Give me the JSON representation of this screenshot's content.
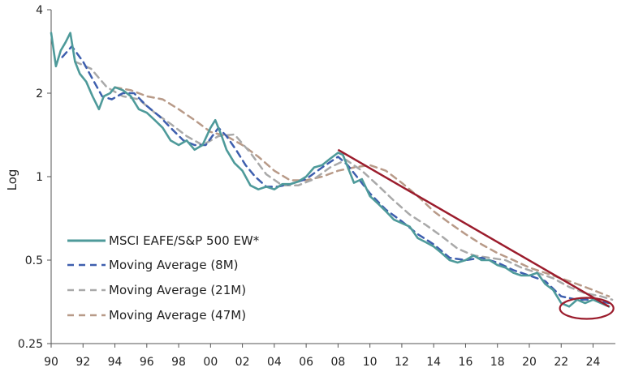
{
  "chart_data": {
    "type": "line",
    "ylabel": "Log",
    "yscale": "log",
    "ylim": [
      0.25,
      4
    ],
    "yticks": [
      "0.25",
      "0.5",
      "1",
      "2",
      "4"
    ],
    "ytick_values": [
      0.25,
      0.5,
      1,
      2,
      4
    ],
    "xlim": [
      1990,
      2025.4
    ],
    "xticks": [
      "90",
      "92",
      "94",
      "96",
      "98",
      "00",
      "02",
      "04",
      "06",
      "08",
      "10",
      "12",
      "14",
      "16",
      "18",
      "20",
      "22",
      "24"
    ],
    "xtick_values": [
      1990,
      1992,
      1994,
      1996,
      1998,
      2000,
      2002,
      2004,
      2006,
      2008,
      2010,
      2012,
      2014,
      2016,
      2018,
      2020,
      2022,
      2024
    ],
    "colors": {
      "main": "#4e9a9a",
      "ma8": "#3e5fae",
      "ma21": "#a9a9a9",
      "ma47": "#b89a88",
      "trend": "#9b1c2c"
    },
    "series": [
      {
        "name": "MSCI EAFE/S&P 500 EW*",
        "key": "main",
        "x": [
          1990,
          1990.3,
          1990.6,
          1990.9,
          1991.2,
          1991.5,
          1991.8,
          1992.2,
          1992.6,
          1993.0,
          1993.3,
          1993.7,
          1994.0,
          1994.5,
          1995.0,
          1995.5,
          1996.0,
          1996.5,
          1997.0,
          1997.5,
          1998.0,
          1998.5,
          1999.0,
          1999.5,
          2000.0,
          2000.3,
          2000.7,
          2001.0,
          2001.5,
          2002.0,
          2002.5,
          2003.0,
          2003.5,
          2004.0,
          2004.5,
          2005.0,
          2005.5,
          2006.0,
          2006.5,
          2007.0,
          2007.5,
          2008.0,
          2008.3,
          2008.7,
          2009.0,
          2009.5,
          2010.0,
          2010.5,
          2011.0,
          2011.5,
          2012.0,
          2012.5,
          2013.0,
          2013.5,
          2014.0,
          2014.5,
          2015.0,
          2015.5,
          2016.0,
          2016.5,
          2017.0,
          2017.5,
          2018.0,
          2018.5,
          2019.0,
          2019.5,
          2020.0,
          2020.5,
          2021.0,
          2021.5,
          2022.0,
          2022.5,
          2023.0,
          2023.5,
          2024.0,
          2024.5,
          2025.0
        ],
        "values": [
          3.3,
          2.5,
          2.85,
          3.05,
          3.3,
          2.6,
          2.35,
          2.2,
          1.95,
          1.75,
          1.95,
          2.0,
          2.1,
          2.05,
          1.95,
          1.75,
          1.7,
          1.6,
          1.5,
          1.35,
          1.3,
          1.35,
          1.25,
          1.3,
          1.5,
          1.6,
          1.4,
          1.25,
          1.12,
          1.05,
          0.93,
          0.9,
          0.92,
          0.9,
          0.94,
          0.94,
          0.96,
          1.0,
          1.08,
          1.1,
          1.16,
          1.22,
          1.2,
          1.05,
          0.95,
          0.98,
          0.85,
          0.8,
          0.75,
          0.7,
          0.68,
          0.66,
          0.6,
          0.58,
          0.56,
          0.53,
          0.5,
          0.49,
          0.5,
          0.52,
          0.5,
          0.5,
          0.48,
          0.47,
          0.45,
          0.44,
          0.44,
          0.45,
          0.41,
          0.39,
          0.35,
          0.34,
          0.36,
          0.35,
          0.36,
          0.35,
          0.34
        ]
      },
      {
        "name": "Moving Average (8M)",
        "key": "ma8",
        "x": [
          1990.7,
          1991.3,
          1992.0,
          1992.6,
          1993.2,
          1993.8,
          1994.5,
          1995.2,
          1996.0,
          1996.8,
          1997.5,
          1998.3,
          1999.0,
          1999.7,
          2000.5,
          2001.0,
          2001.6,
          2002.2,
          2002.8,
          2003.5,
          2004.2,
          2005.0,
          2006.0,
          2007.0,
          2008.0,
          2008.6,
          2009.3,
          2010.0,
          2011.0,
          2012.0,
          2013.0,
          2014.0,
          2015.0,
          2016.0,
          2017.0,
          2018.0,
          2019.0,
          2020.0,
          2021.0,
          2022.0,
          2023.0,
          2024.0,
          2025.0
        ],
        "values": [
          2.7,
          2.95,
          2.6,
          2.25,
          1.95,
          1.9,
          2.0,
          2.0,
          1.8,
          1.65,
          1.5,
          1.35,
          1.3,
          1.3,
          1.5,
          1.4,
          1.25,
          1.1,
          1.0,
          0.92,
          0.92,
          0.94,
          0.98,
          1.08,
          1.18,
          1.1,
          0.98,
          0.87,
          0.76,
          0.69,
          0.62,
          0.57,
          0.51,
          0.5,
          0.51,
          0.49,
          0.46,
          0.44,
          0.42,
          0.37,
          0.36,
          0.36,
          0.35
        ]
      },
      {
        "name": "Moving Average (21M)",
        "key": "ma21",
        "x": [
          1991.5,
          1992.5,
          1993.5,
          1994.5,
          1995.5,
          1996.5,
          1997.5,
          1998.5,
          1999.5,
          2000.5,
          2001.5,
          2002.5,
          2003.5,
          2004.5,
          2005.5,
          2006.5,
          2007.5,
          2008.5,
          2009.5,
          2010.5,
          2011.5,
          2012.5,
          2013.5,
          2014.5,
          2015.5,
          2016.5,
          2017.5,
          2018.5,
          2019.5,
          2020.5,
          2021.5,
          2022.5,
          2023.5,
          2024.5,
          2025.2
        ],
        "values": [
          2.6,
          2.45,
          2.1,
          1.95,
          1.9,
          1.7,
          1.55,
          1.4,
          1.3,
          1.4,
          1.42,
          1.22,
          1.02,
          0.93,
          0.93,
          0.98,
          1.08,
          1.15,
          1.05,
          0.93,
          0.82,
          0.73,
          0.67,
          0.61,
          0.55,
          0.52,
          0.51,
          0.5,
          0.47,
          0.45,
          0.43,
          0.4,
          0.38,
          0.37,
          0.36
        ]
      },
      {
        "name": "Moving Average (47M)",
        "key": "ma47",
        "x": [
          1994.0,
          1995.0,
          1996.0,
          1997.0,
          1998.0,
          1999.0,
          2000.0,
          2001.0,
          2002.0,
          2003.0,
          2004.0,
          2005.0,
          2006.0,
          2007.0,
          2008.0,
          2009.0,
          2010.0,
          2011.0,
          2012.0,
          2013.0,
          2014.0,
          2015.0,
          2016.0,
          2017.0,
          2018.0,
          2019.0,
          2020.0,
          2021.0,
          2022.0,
          2023.0,
          2024.0,
          2025.0
        ],
        "values": [
          2.1,
          2.05,
          1.95,
          1.9,
          1.75,
          1.6,
          1.45,
          1.4,
          1.3,
          1.18,
          1.05,
          0.97,
          0.97,
          1.0,
          1.05,
          1.08,
          1.1,
          1.05,
          0.95,
          0.85,
          0.75,
          0.68,
          0.62,
          0.57,
          0.53,
          0.5,
          0.47,
          0.45,
          0.43,
          0.41,
          0.39,
          0.37
        ]
      }
    ],
    "trendline": {
      "x": [
        2008.0,
        2025.0
      ],
      "values": [
        1.25,
        0.34
      ]
    },
    "highlight": {
      "shape": "ellipse",
      "center_x": 2023.6,
      "center_value": 0.335
    }
  }
}
